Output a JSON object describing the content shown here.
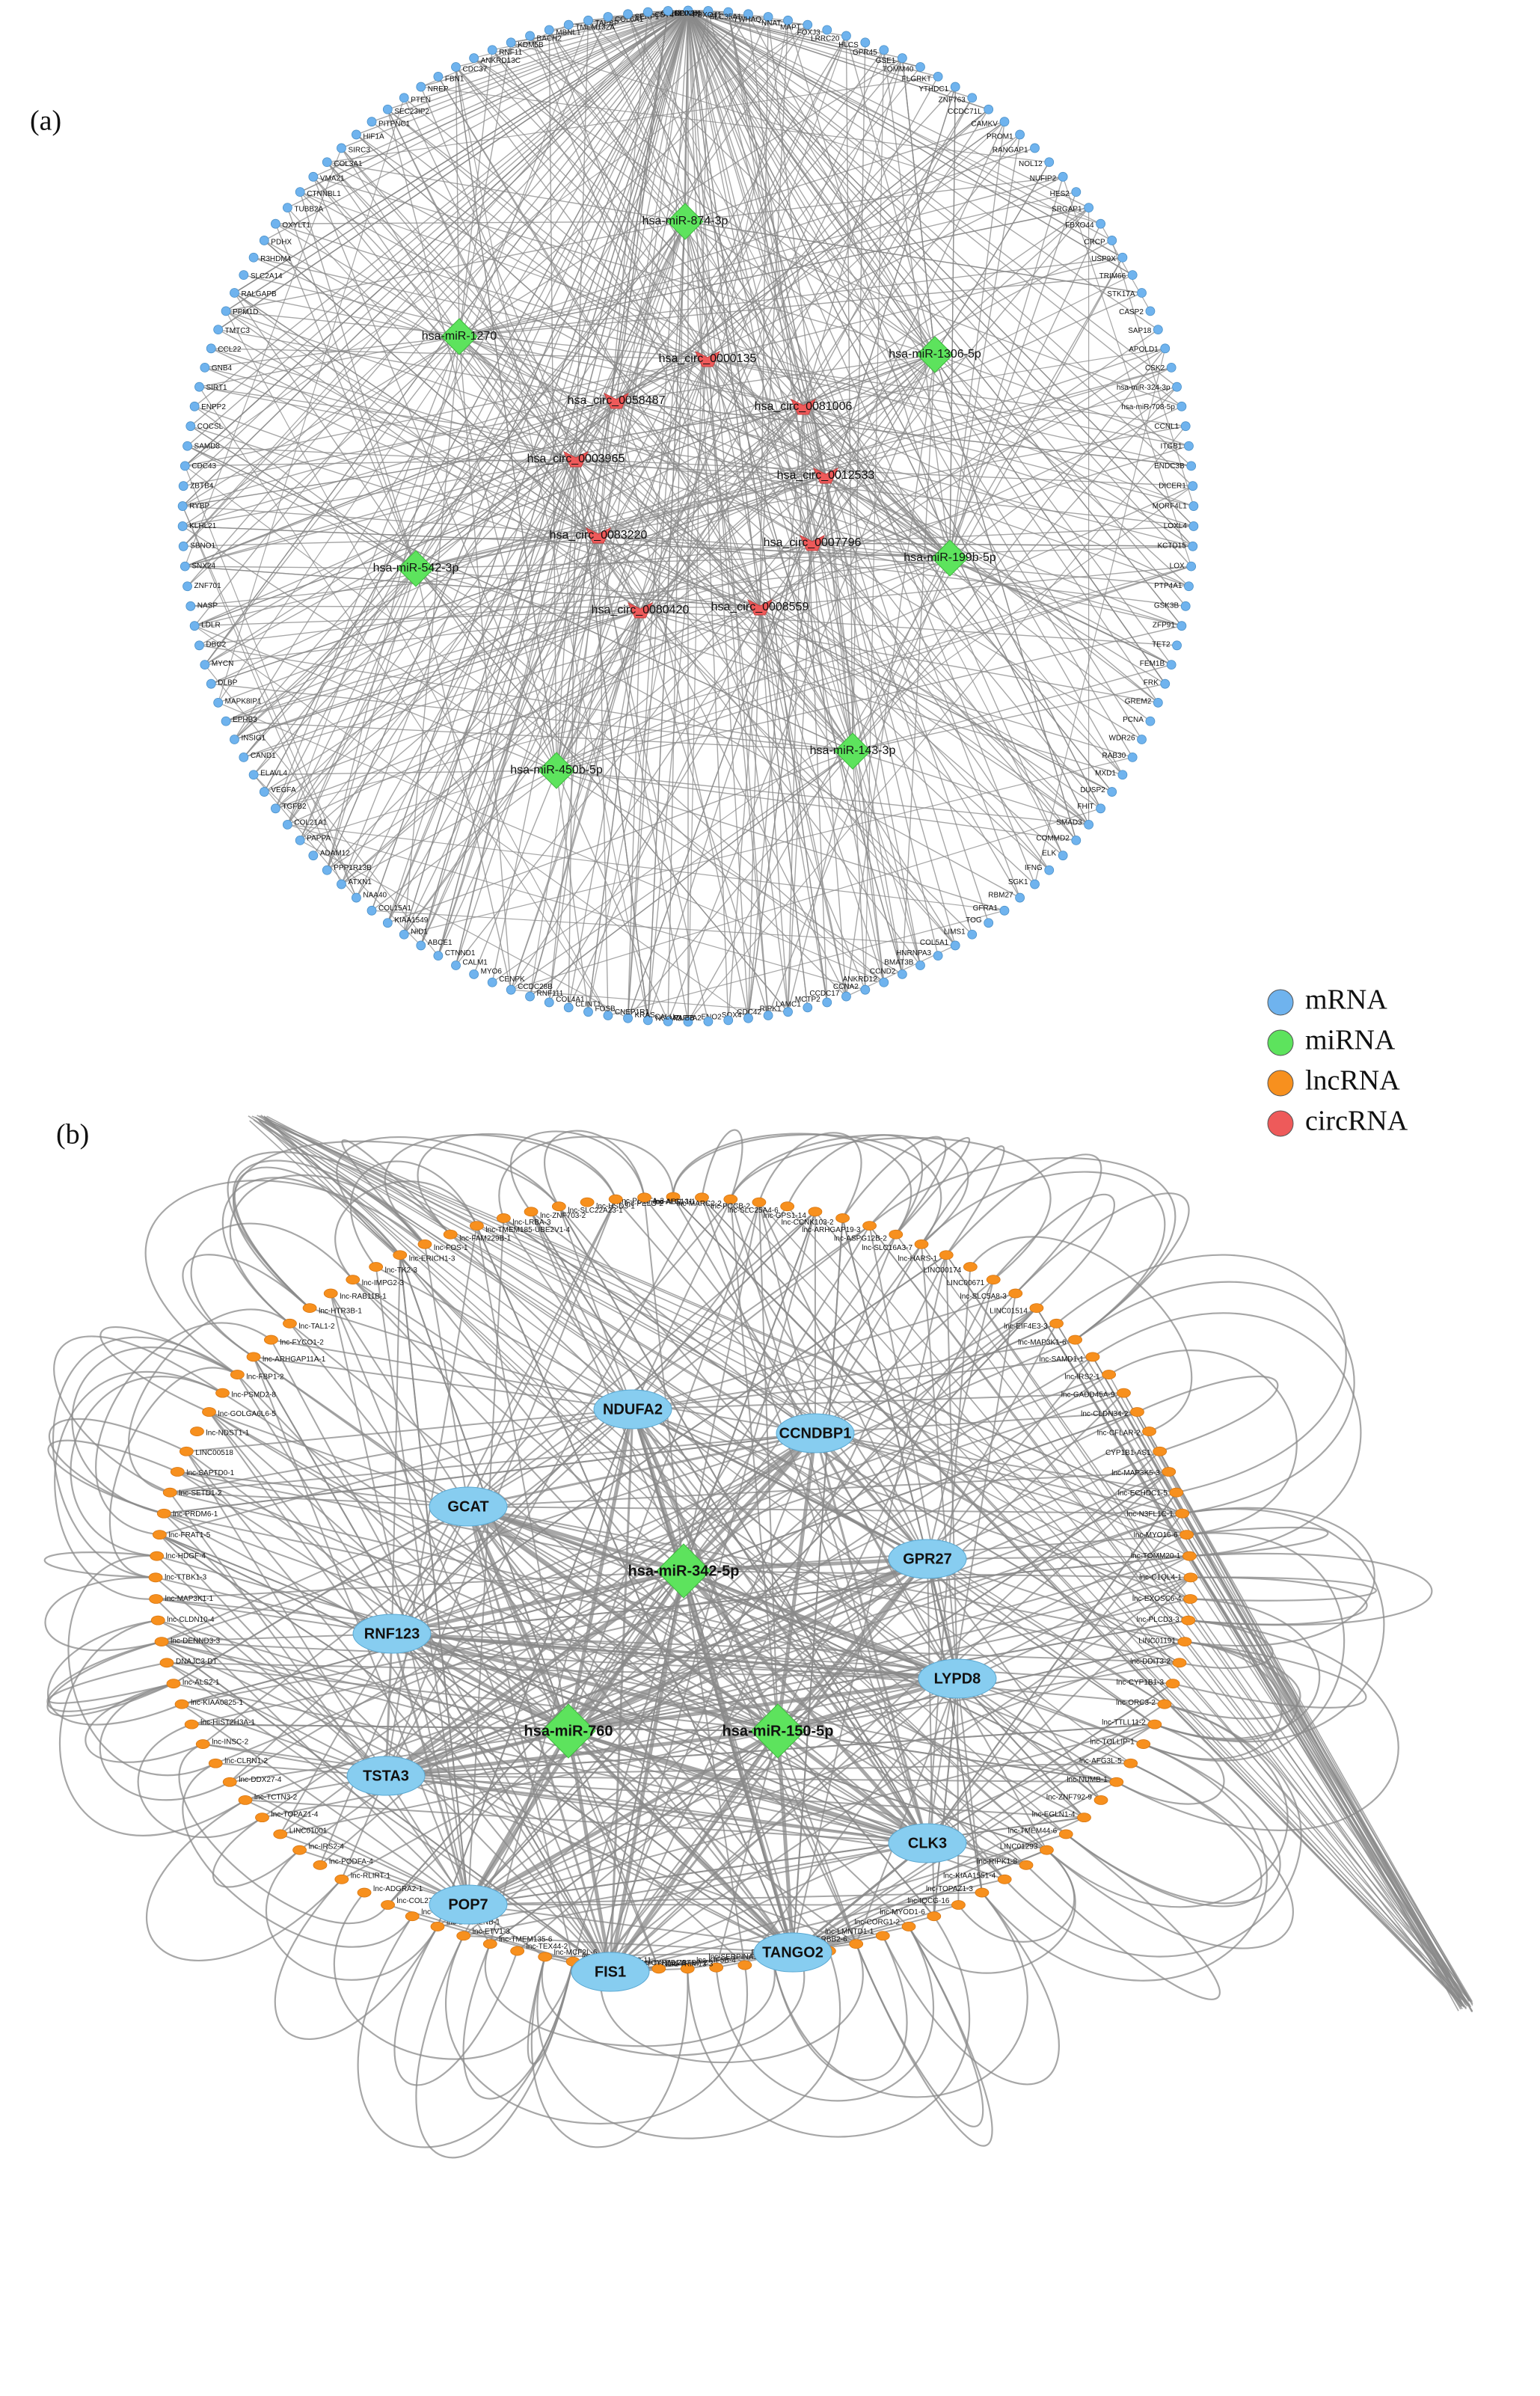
{
  "legend": [
    {
      "label": "mRNA",
      "color": "#6fb3ee"
    },
    {
      "label": "miRNA",
      "color": "#5de35d"
    },
    {
      "label": "lncRNA",
      "color": "#f7901e"
    },
    {
      "label": "circRNA",
      "color": "#ee5a5a"
    }
  ],
  "panels": [
    {
      "label": "(a)",
      "mirna": [
        "hsa-miR-874-3p",
        "hsa-miR-1270",
        "hsa-miR-1306-5p",
        "hsa-miR-542-3p",
        "hsa-miR-199b-5p",
        "hsa-miR-450b-5p",
        "hsa-miR-143-3p"
      ],
      "circrna": [
        "hsa_circ_0000135",
        "hsa_circ_0058487",
        "hsa_circ_0081006",
        "hsa_circ_0003965",
        "hsa_circ_0012533",
        "hsa_circ_0083220",
        "hsa_circ_0007796",
        "hsa_circ_0080420",
        "hsa_circ_0008559"
      ],
      "mrna": [
        "CDH2",
        "SERPINH1",
        "FBXO41",
        "SLC35A1",
        "YWHAQ",
        "NNAT",
        "MAPT",
        "FOXJ3",
        "LRRC20",
        "HLCS",
        "GPR45",
        "GSE1",
        "TOMM40",
        "FLGRKT",
        "YTHDC1",
        "ZNF763",
        "CCDC71L",
        "CAMKV",
        "PROM1",
        "RANGAP1",
        "NOL12",
        "NUFIP2",
        "HES2",
        "SRGAP1",
        "FBXO44",
        "CRCP",
        "USP9X",
        "TRIM66",
        "STK17A",
        "CASP2",
        "SAP18",
        "APOLD1",
        "CSK2",
        "hsa-miR-324-3p",
        "hsa-miR-708-5p",
        "CCNL1",
        "ITGB1",
        "ENDC3B",
        "DICER1",
        "MORF4L1",
        "LOXL4",
        "KCTD15",
        "LOX",
        "PTP4A1",
        "GSK3B",
        "ZFP91",
        "TET2",
        "FEM1B",
        "FRK",
        "GREM2",
        "PCNA",
        "WDR26",
        "RAB30",
        "MXD1",
        "DUSP2",
        "FHIT",
        "SMAD3",
        "COMMD2",
        "ELK",
        "IFNG",
        "SGK1",
        "RBM27",
        "GFRA1",
        "TOG",
        "LIMS1",
        "COL5A1",
        "HNRNPA3",
        "BMAT3B",
        "CCND2",
        "ANKRD12",
        "CCNA2",
        "CCDC17",
        "MCTP2",
        "LAMC1",
        "RIPK1",
        "CDC42",
        "SOX4",
        "ENO2",
        "PAPPA2",
        "NCOA3",
        "TUBB",
        "CALU",
        "KRAS",
        "CNEP1R1",
        "FOSB",
        "CLINT1",
        "COL4A1",
        "RNF111",
        "CCDC28B",
        "CENPK",
        "MYO6",
        "CALM1",
        "CTNND1",
        "ABCE1",
        "NID1",
        "KIAA1549",
        "COL15A1",
        "NAA40",
        "ATXN1",
        "PPP1R13B",
        "ADAM12",
        "PAPPA",
        "COL21A1",
        "TGFB2",
        "VEGFA",
        "ELAVL4",
        "CAND1",
        "INSIG1",
        "EPHB3",
        "MAPK8IP1",
        "DLBP",
        "MYCN",
        "DBC2",
        "LDLR",
        "NASP",
        "ZNF701",
        "SNX24",
        "SBNO1",
        "KLHL21",
        "RYBP",
        "ZBTB4",
        "CDC43",
        "SAMD8",
        "COCSL",
        "ENPP2",
        "SIRT1",
        "GNB4",
        "CCL22",
        "TMTC3",
        "PPM1D",
        "RALGAPB",
        "SLC2A14",
        "R3HDM4",
        "PDHX",
        "OXYLT1",
        "TUBB2A",
        "CTNNBL1",
        "VMA21",
        "COL3A1",
        "SIRC3",
        "HIF1A",
        "PITPNC1",
        "SEC23IP2",
        "PTEN",
        "NREP",
        "FBN1",
        "CDC37",
        "ANKRD13C",
        "RNF11",
        "KDM5B",
        "BACH2",
        "MBNL1",
        "TMEM132A",
        "TAPBP",
        "COL6A1",
        "SERP1",
        "CD74",
        "DDX3X"
      ]
    },
    {
      "label": "(b)",
      "mirna": [
        "hsa-miR-342-5p",
        "hsa-miR-760",
        "hsa-miR-150-5p"
      ],
      "mrna": [
        "NDUFA2",
        "CCNDBP1",
        "GCAT",
        "GPR27",
        "RNF123",
        "LYPD8",
        "TSTA3",
        "CLK3",
        "POP7",
        "FIS1",
        "TANGO2"
      ],
      "lncrna": [
        "lnc-PDGFA-3",
        "lnc-ABI1-11",
        "lnc-MARC2-2",
        "lnc-PCCB-2",
        "lnc-SLC25A4-6",
        "lnc-GPS1-14",
        "lnc-CCNK103-2",
        "lnc-ARHGAP19-3",
        "lnc-ASPG12B-2",
        "lnc-SLC16A3-7",
        "lnc-HARS-1",
        "LINC00174",
        "LINC00671",
        "lnc-SLC5A8-3",
        "LINC01514",
        "lnc-EIF4E3-3",
        "lnc-MAP3K1-6",
        "lnc-SAMD1-1",
        "lnc-IRS2-1",
        "lnc-GADD45A-9",
        "lnc-CLDN34-2",
        "lnc-CFLAR-2",
        "CYP1B1-AS1",
        "lnc-MAP3K5-3",
        "lnc-ECHDC1-5",
        "lnc-N3FL1C-1",
        "lnc-MYO16-6",
        "lnc-TOMM20-1",
        "lnc-C1QL4-1",
        "lnc-EXOSC6-4",
        "lnc-PLCD3-3",
        "LINC01191",
        "lnc-DDIT3-2",
        "lnc-CYP1B1-3",
        "lnc-ORC3-2",
        "lnc-TTLL11-2",
        "lnc-TOLLIP-1",
        "lnc-AFG3L-5",
        "lnc-NUMB-1",
        "lnc-ZNF792-9",
        "lnc-EGLN1-4",
        "lnc-TMEM44-6",
        "LINC01293",
        "lnc-RIPK1-8",
        "lnc-KIAA1551-4",
        "lnc-TOPAZ1-3",
        "lnc-IQCG-16",
        "lnc-MYOD1-6",
        "lnc-CORG1-2",
        "lnc-LMNTD1-1",
        "lnc-ERBB2-6",
        "lnc-ACSBG2-2",
        "BAALC-AS1",
        "lnc-SERPINA1-4",
        "lnc-KIF5B-4",
        "lnc-ZBTB7-2",
        "lnc-SPTBN1-2",
        "lnc-TRIM13-3",
        "lnc-CYP7B1-1",
        "lnc-TBP3-11",
        "lnc-PIMPF-6",
        "lnc-MCF2L-6",
        "lnc-TEX44-2",
        "lnc-TMEM135-6",
        "lnc-ETV1-3",
        "lnc-DPEP2NB-1",
        "lnc-MYO16-9",
        "lnc-COL27A1-1",
        "lnc-ADGRA2-1",
        "lnc-RLIRT-1",
        "lnc-PODFA-4",
        "lnc-IRS2-4",
        "LINC01001",
        "lnc-TOPAZ1-4",
        "lnc-TCTN3-2",
        "lnc-DDX27-4",
        "lnc-CLRN1-2",
        "lnc-INSC-2",
        "lnc-HIST2H3A-1",
        "lnc-KIAA0825-1",
        "lnc-ALS2-1",
        "DNAJC3-DT",
        "lnc-DENND3-3",
        "lnc-CLDN10-4",
        "lnc-MAP3K1-1",
        "lnc-TTBK1-3",
        "lnc-HDGF-4",
        "lnc-FRAT1-5",
        "lnc-PRDM6-1",
        "lnc-SETD1-2",
        "lnc-SAPTD0-1",
        "LINC00518",
        "lnc-NDST1-1",
        "lnc-GOLGA6L6-5",
        "lnc-PSMD2-8",
        "lnc-FBP1-2",
        "lnc-ARHGAP11A-1",
        "lnc-FYCO1-2",
        "lnc-TAL1-2",
        "lnc-HTR3B-1",
        "lnc-RAB11B-1",
        "lnc-IMPG2-3",
        "lnc-TK2-3",
        "lnc-ERICH1-3",
        "lnc-FOS-1",
        "lnc-FAM229B-1",
        "lnc-TMEM185-UBE2V1-4",
        "lnc-LRBA-3",
        "lnc-ZNF703-2",
        "lnc-SLC22A23-1",
        "lnc-HSD3-1",
        "lnc-PELO-2",
        "lnc-ALG13-1"
      ]
    }
  ]
}
